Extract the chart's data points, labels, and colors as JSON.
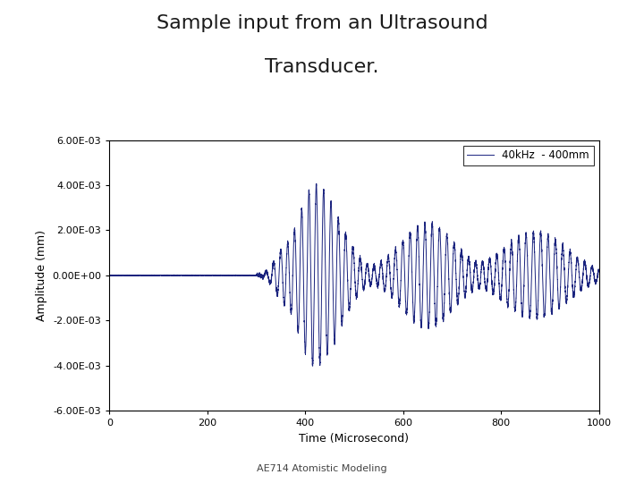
{
  "title_line1": "Sample input from an Ultrasound",
  "title_line2": "Transducer.",
  "title_fontsize": 16,
  "title_color": "#1a1a1a",
  "xlabel": "Time (Microsecond)",
  "ylabel": "Amplitude (mm)",
  "xlim": [
    0,
    1000
  ],
  "ylim": [
    -0.006,
    0.006
  ],
  "yticks": [
    -0.006,
    -0.004,
    -0.002,
    0.0,
    0.002,
    0.004,
    0.006
  ],
  "xticks": [
    0,
    200,
    400,
    600,
    800,
    1000
  ],
  "line_color": "#1a237e",
  "line_width": 0.7,
  "legend_label": "40kHz  - 400mm",
  "footer_text": "AE714 Atomistic Modeling",
  "footer_fontsize": 8,
  "background_color": "#ffffff"
}
